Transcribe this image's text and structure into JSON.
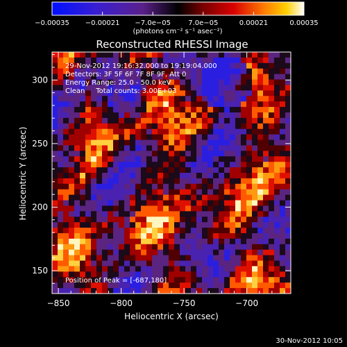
{
  "chart_data": {
    "type": "heatmap",
    "title": "Reconstructed RHESSI Image",
    "xlabel": "Heliocentric X (arcsec)",
    "ylabel": "Heliocentric Y (arcsec)",
    "xlim": [
      -855,
      -665
    ],
    "ylim": [
      132,
      322
    ],
    "x_ticks": [
      -850,
      -800,
      -750,
      -700
    ],
    "x_tick_labels": [
      "−850",
      "−800",
      "−750",
      "−700"
    ],
    "y_ticks": [
      150,
      200,
      250,
      300
    ],
    "y_tick_labels": [
      "150",
      "200",
      "250",
      "300"
    ],
    "colorbar": {
      "range": [
        -0.00035,
        0.00035
      ],
      "ticks": [
        -0.00035,
        -0.00021,
        -7e-05,
        7e-05,
        0.00021,
        0.00035
      ],
      "tick_labels": [
        "−0.00035",
        "−0.00021",
        "−7.0e−05",
        "7.0e−05",
        "0.00021",
        "0.00035"
      ],
      "units": "(photons cm⁻² s⁻¹ asec⁻²)"
    },
    "annotations": [
      "29-Nov-2012 19:16:32.000 to 19:19:04.000",
      "Detectors: 3F 5F 6F 7F 8F 9F, Att 0",
      "Energy Range: 25.0 - 50.0 keV",
      "Clean     Total counts: 3.00E+03"
    ],
    "peak_label": "Position of Peak = [-687,180]",
    "peak": [
      -687,
      180
    ],
    "grid": false
  },
  "footer_date": "30-Nov-2012 10:05"
}
